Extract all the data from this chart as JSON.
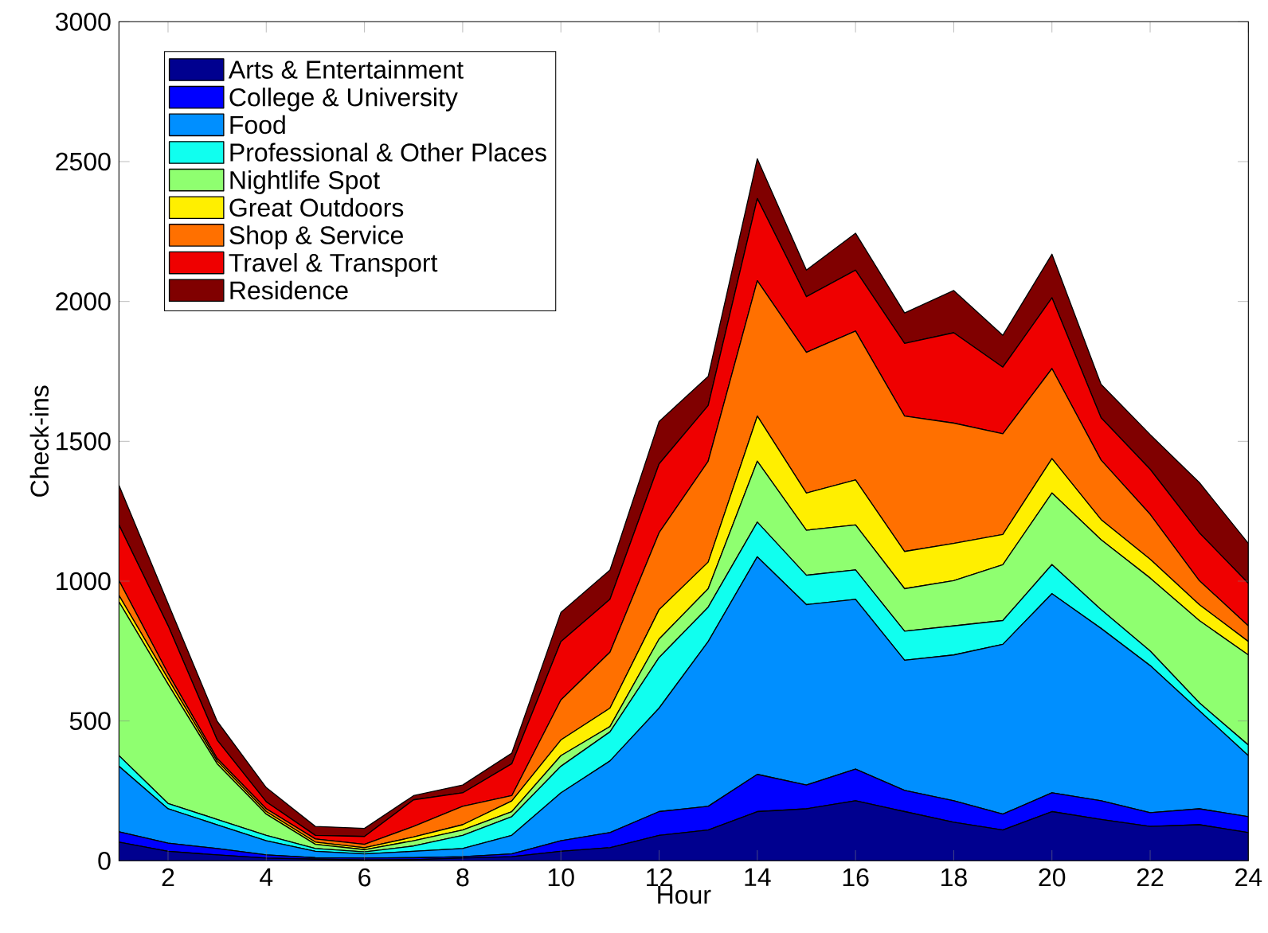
{
  "chart_data": {
    "type": "area",
    "stacked": true,
    "xlabel": "Hour",
    "ylabel": "Check-ins",
    "x": [
      1,
      2,
      3,
      4,
      5,
      6,
      7,
      8,
      9,
      10,
      11,
      12,
      13,
      14,
      15,
      16,
      17,
      18,
      19,
      20,
      21,
      22,
      23,
      24
    ],
    "xlim": [
      1,
      24
    ],
    "xticks": [
      2,
      4,
      6,
      8,
      10,
      12,
      14,
      16,
      18,
      20,
      22,
      24
    ],
    "ylim": [
      0,
      3000
    ],
    "yticks": [
      0,
      500,
      1000,
      1500,
      2000,
      2500,
      3000
    ],
    "legend": "top left",
    "grid": false,
    "series": [
      {
        "name": "Arts & Entertainment",
        "color": "#00008f",
        "values": [
          67,
          34,
          21,
          10,
          6,
          3,
          4,
          10,
          15,
          34,
          47,
          91,
          110,
          176,
          186,
          215,
          176,
          138,
          110,
          176,
          148,
          123,
          129,
          101
        ]
      },
      {
        "name": "College & University",
        "color": "#0000ff",
        "values": [
          37,
          29,
          23,
          11,
          5,
          7,
          7,
          5,
          10,
          38,
          54,
          85,
          85,
          133,
          85,
          113,
          76,
          77,
          57,
          67,
          67,
          49,
          57,
          57
        ]
      },
      {
        "name": "Food",
        "color": "#008fff",
        "values": [
          234,
          123,
          85,
          51,
          23,
          15,
          23,
          29,
          66,
          171,
          256,
          370,
          589,
          778,
          645,
          607,
          465,
          521,
          607,
          712,
          616,
          526,
          351,
          218
        ]
      },
      {
        "name": "Professional & Other Places",
        "color": "#10ffef",
        "values": [
          38,
          19,
          19,
          19,
          10,
          7,
          19,
          47,
          67,
          95,
          104,
          181,
          123,
          124,
          105,
          105,
          104,
          104,
          85,
          104,
          67,
          52,
          28,
          38
        ]
      },
      {
        "name": "Nightlife Spot",
        "color": "#8fff70",
        "values": [
          550,
          427,
          199,
          76,
          15,
          8,
          19,
          19,
          18,
          38,
          19,
          66,
          66,
          218,
          161,
          161,
          152,
          162,
          200,
          256,
          250,
          261,
          294,
          322
        ]
      },
      {
        "name": "Great Outdoors",
        "color": "#ffef00",
        "values": [
          23,
          19,
          10,
          9,
          8,
          7,
          13,
          19,
          38,
          56,
          66,
          105,
          95,
          161,
          133,
          161,
          133,
          133,
          108,
          123,
          72,
          67,
          57,
          48
        ]
      },
      {
        "name": "Shop & Service",
        "color": "#ff7000",
        "values": [
          53,
          19,
          9,
          10,
          11,
          12,
          38,
          66,
          19,
          143,
          200,
          275,
          361,
          484,
          503,
          532,
          484,
          430,
          360,
          322,
          213,
          161,
          86,
          56
        ]
      },
      {
        "name": "Travel & Transport",
        "color": "#ef0000",
        "values": [
          199,
          171,
          66,
          25,
          13,
          28,
          95,
          48,
          114,
          209,
          189,
          246,
          199,
          294,
          199,
          218,
          260,
          323,
          238,
          253,
          151,
          161,
          171,
          152
        ]
      },
      {
        "name": "Residence",
        "color": "#800000",
        "values": [
          142,
          79,
          67,
          51,
          32,
          29,
          15,
          28,
          38,
          104,
          105,
          152,
          104,
          142,
          95,
          132,
          109,
          151,
          114,
          156,
          120,
          124,
          180,
          143
        ]
      }
    ]
  }
}
